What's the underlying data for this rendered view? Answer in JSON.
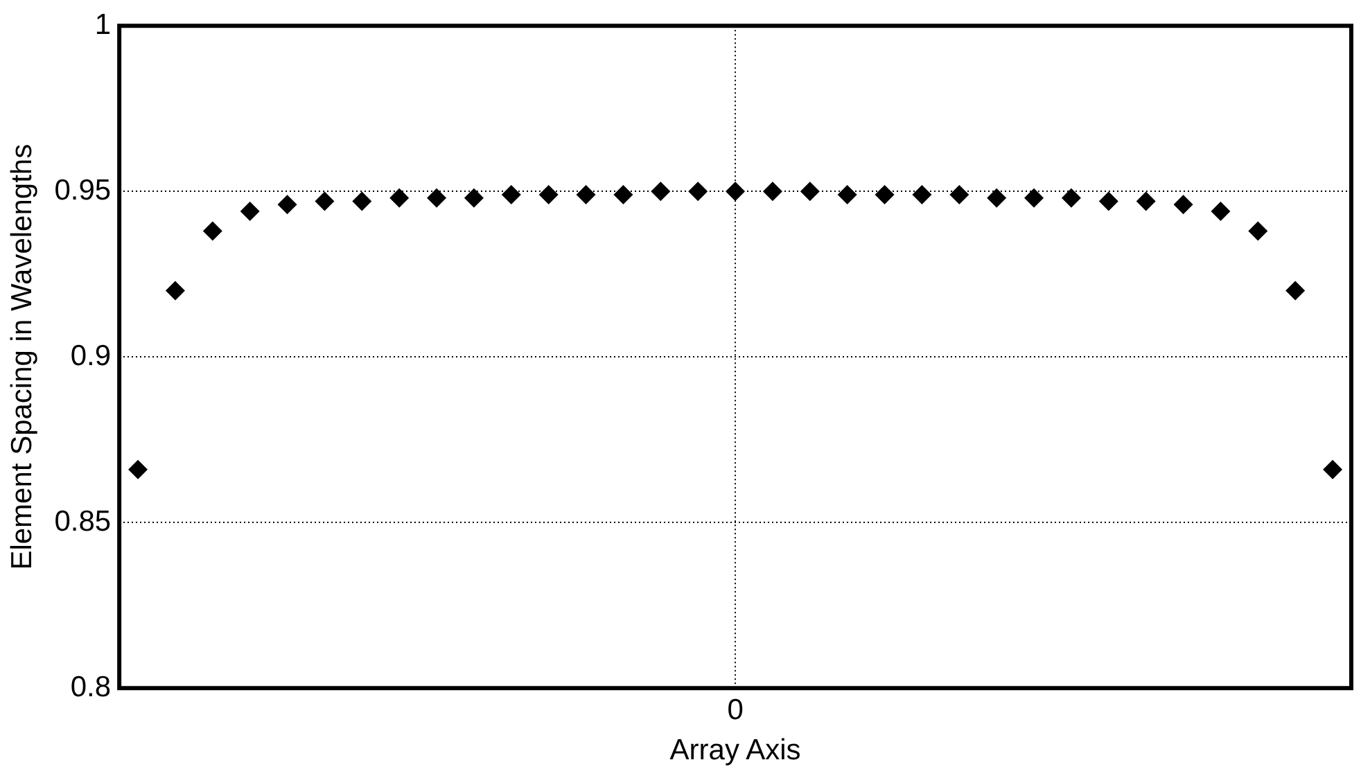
{
  "chart_data": {
    "type": "scatter",
    "xlabel": "Array Axis",
    "ylabel": "Element Spacing in Wavelengths",
    "categories": [
      null,
      null,
      null,
      null,
      null,
      null,
      null,
      null,
      null,
      null,
      null,
      null,
      null,
      null,
      null,
      null,
      "0",
      null,
      null,
      null,
      null,
      null,
      null,
      null,
      null,
      null,
      null,
      null,
      null,
      null,
      null,
      null,
      null
    ],
    "series": [
      {
        "color": "#000000",
        "values": [
          0.866,
          0.92,
          0.938,
          0.944,
          0.946,
          0.947,
          0.947,
          0.948,
          0.948,
          0.948,
          0.949,
          0.949,
          0.949,
          0.949,
          0.95,
          0.95,
          0.95,
          0.95,
          0.95,
          0.949,
          0.949,
          0.949,
          0.949,
          0.948,
          0.948,
          0.948,
          0.947,
          0.947,
          0.946,
          0.944,
          0.938,
          0.92,
          0.866
        ]
      }
    ],
    "ylim": [
      0.8,
      1
    ],
    "yticks": [
      0.8,
      0.85,
      0.9,
      0.95,
      1
    ],
    "grid": true,
    "line_style": "dotted",
    "marker": "diamond",
    "legend": false
  }
}
